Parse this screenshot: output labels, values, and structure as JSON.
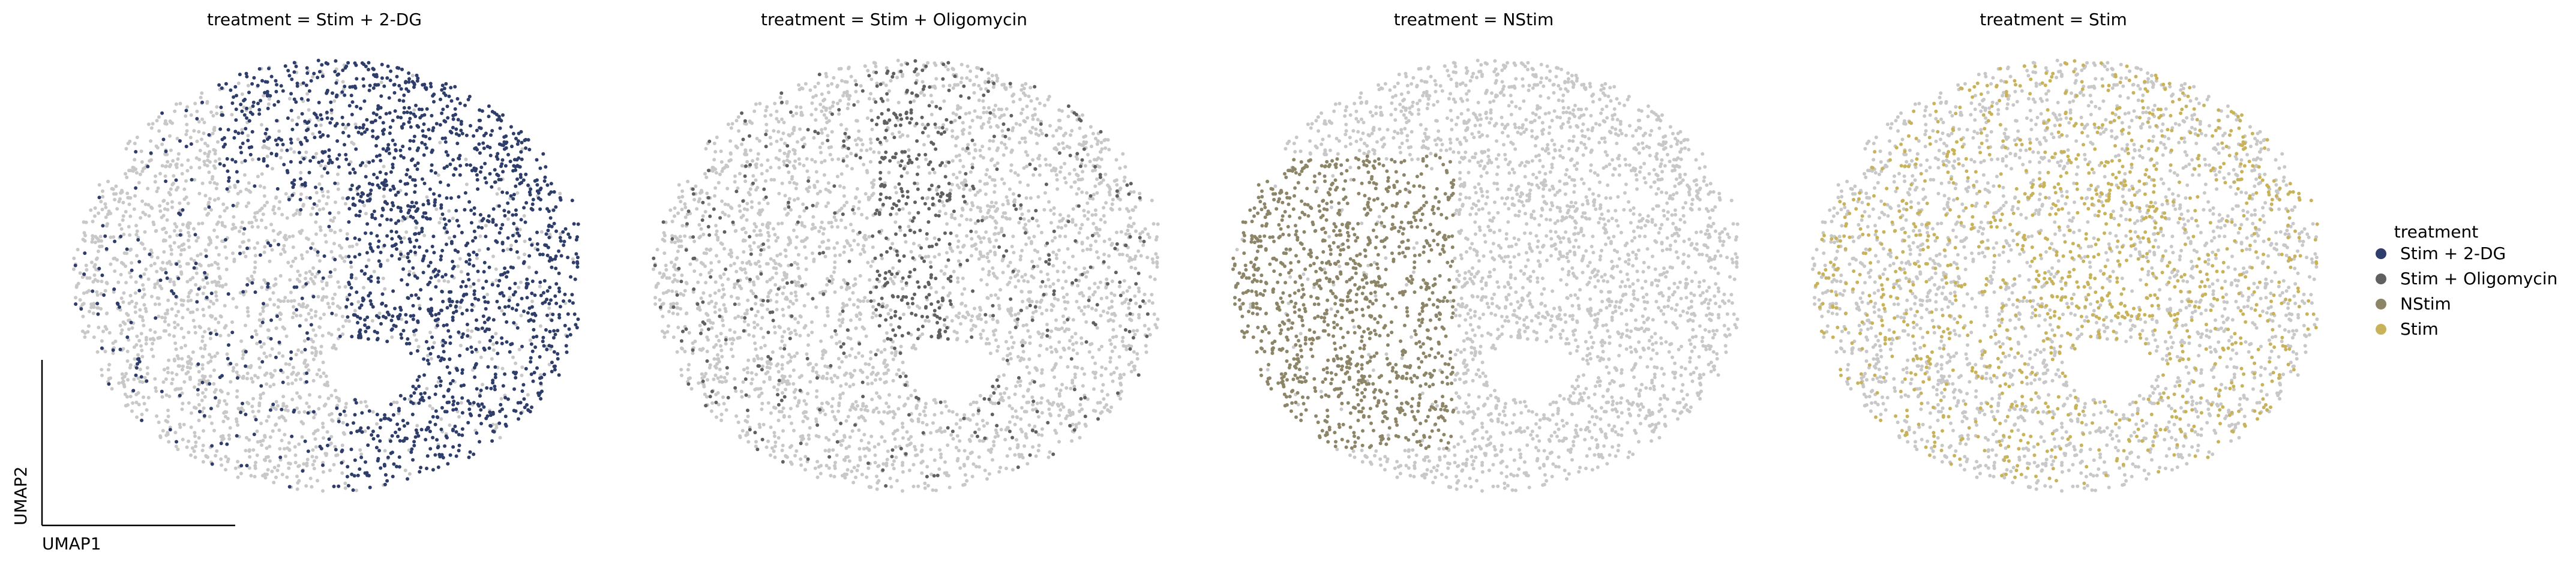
{
  "chart_data": {
    "type": "scatter",
    "subtype": "umap-facets",
    "facet_variable": "treatment",
    "panels": [
      {
        "title": "treatment = Stim + 2-DG",
        "highlight": "Stim + 2-DG",
        "highlight_regions": "upper-right lobe, dense along right edge, scattered elsewhere"
      },
      {
        "title": "treatment = Stim + Oligomycin",
        "highlight": "Stim + Oligomycin",
        "highlight_regions": "vertical band at center-top, sparse elsewhere"
      },
      {
        "title": "treatment = NStim",
        "highlight": "NStim",
        "highlight_regions": "dense left lobe"
      },
      {
        "title": "treatment = Stim",
        "highlight": "Stim",
        "highlight_regions": "scattered throughout, slightly denser at center"
      }
    ],
    "xlabel": "UMAP1",
    "ylabel": "UMAP2",
    "background_color": "#c8c8c8",
    "grid": false,
    "legend": {
      "title": "treatment",
      "placement": "right",
      "entries": [
        {
          "label": "Stim + 2-DG",
          "color": "#2e3d69"
        },
        {
          "label": "Stim + Oligomycin",
          "color": "#606060"
        },
        {
          "label": "NStim",
          "color": "#8c8568"
        },
        {
          "label": "Stim",
          "color": "#c8b35a"
        }
      ]
    }
  }
}
